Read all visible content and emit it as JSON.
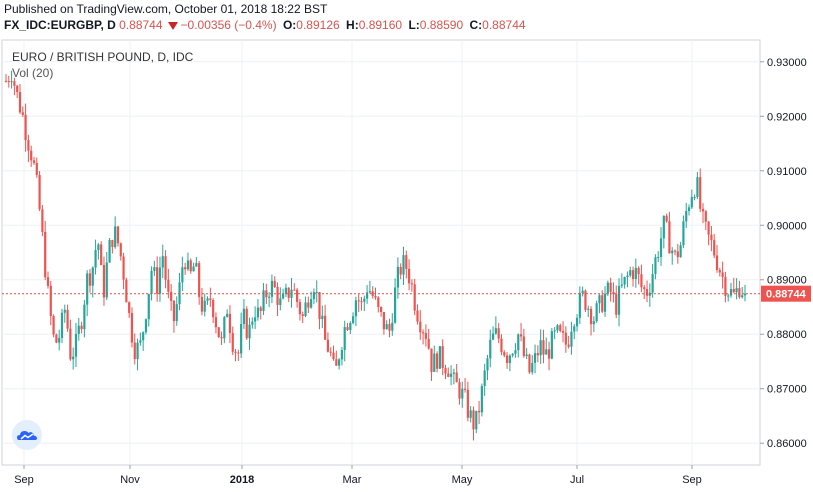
{
  "header": {
    "published": "Published on TradingView.com, October 01, 2018 18:22 BST",
    "symbol": "FX_IDC:EURGBP, D",
    "last": "0.88744",
    "change": "−0.00356 (−0.4%)",
    "open_label": "O:",
    "open": "0.89126",
    "high_label": "H:",
    "high": "0.89160",
    "low_label": "L:",
    "low": "0.88590",
    "close_label": "C:",
    "close": "0.88744"
  },
  "chart_title": "EURO / BRITISH POUND, D, IDC",
  "volume_label": "Vol (20)",
  "logo_icon": "tradingview-cloud-icon",
  "colors": {
    "up": "#26a69a",
    "down": "#ef5350",
    "price_line": "#d9534f",
    "last_tag": "#ef5350",
    "grid": "#eef0f3"
  },
  "chart_data": {
    "type": "candlestick",
    "title": "EURO / BRITISH POUND, D, IDC",
    "x_ticks": [
      "Sep",
      "Nov",
      "2018",
      "Mar",
      "May",
      "Jul",
      "Sep"
    ],
    "y_ticks": [
      "0.93000",
      "0.92000",
      "0.91000",
      "0.90000",
      "0.89000",
      "0.88000",
      "0.87000",
      "0.86000"
    ],
    "ylim": [
      0.856,
      0.934
    ],
    "last_price": 0.88744,
    "last_price_label": "0.88744",
    "grid": true,
    "series": [
      {
        "name": "EURGBP",
        "path_close": [
          0.9265,
          0.9285,
          0.924,
          0.9205,
          0.916,
          0.912,
          0.905,
          0.895,
          0.885,
          0.878,
          0.88,
          0.885,
          0.876,
          0.878,
          0.883,
          0.89,
          0.892,
          0.898,
          0.887,
          0.895,
          0.899,
          0.896,
          0.89,
          0.882,
          0.877,
          0.878,
          0.885,
          0.892,
          0.889,
          0.895,
          0.887,
          0.882,
          0.887,
          0.895,
          0.89,
          0.893,
          0.886,
          0.884,
          0.887,
          0.882,
          0.878,
          0.885,
          0.879,
          0.876,
          0.883,
          0.88,
          0.885,
          0.883,
          0.887,
          0.889,
          0.888,
          0.885,
          0.887,
          0.889,
          0.886,
          0.883,
          0.887,
          0.89,
          0.885,
          0.879,
          0.877,
          0.872,
          0.878,
          0.882,
          0.884,
          0.887,
          0.885,
          0.889,
          0.887,
          0.884,
          0.882,
          0.88,
          0.887,
          0.892,
          0.893,
          0.89,
          0.885,
          0.882,
          0.88,
          0.874,
          0.876,
          0.875,
          0.874,
          0.871,
          0.87,
          0.868,
          0.865,
          0.863,
          0.868,
          0.874,
          0.879,
          0.88,
          0.878,
          0.876,
          0.878,
          0.88,
          0.876,
          0.873,
          0.875,
          0.878,
          0.876,
          0.878,
          0.88,
          0.879,
          0.878,
          0.883,
          0.885,
          0.887,
          0.885,
          0.883,
          0.885,
          0.887,
          0.888,
          0.885,
          0.888,
          0.89,
          0.892,
          0.891,
          0.888,
          0.888,
          0.892,
          0.896,
          0.9,
          0.897,
          0.894,
          0.896,
          0.902,
          0.906,
          0.908,
          0.901,
          0.898,
          0.896,
          0.893,
          0.89,
          0.888,
          0.887,
          0.889,
          0.8874
        ]
      }
    ]
  }
}
